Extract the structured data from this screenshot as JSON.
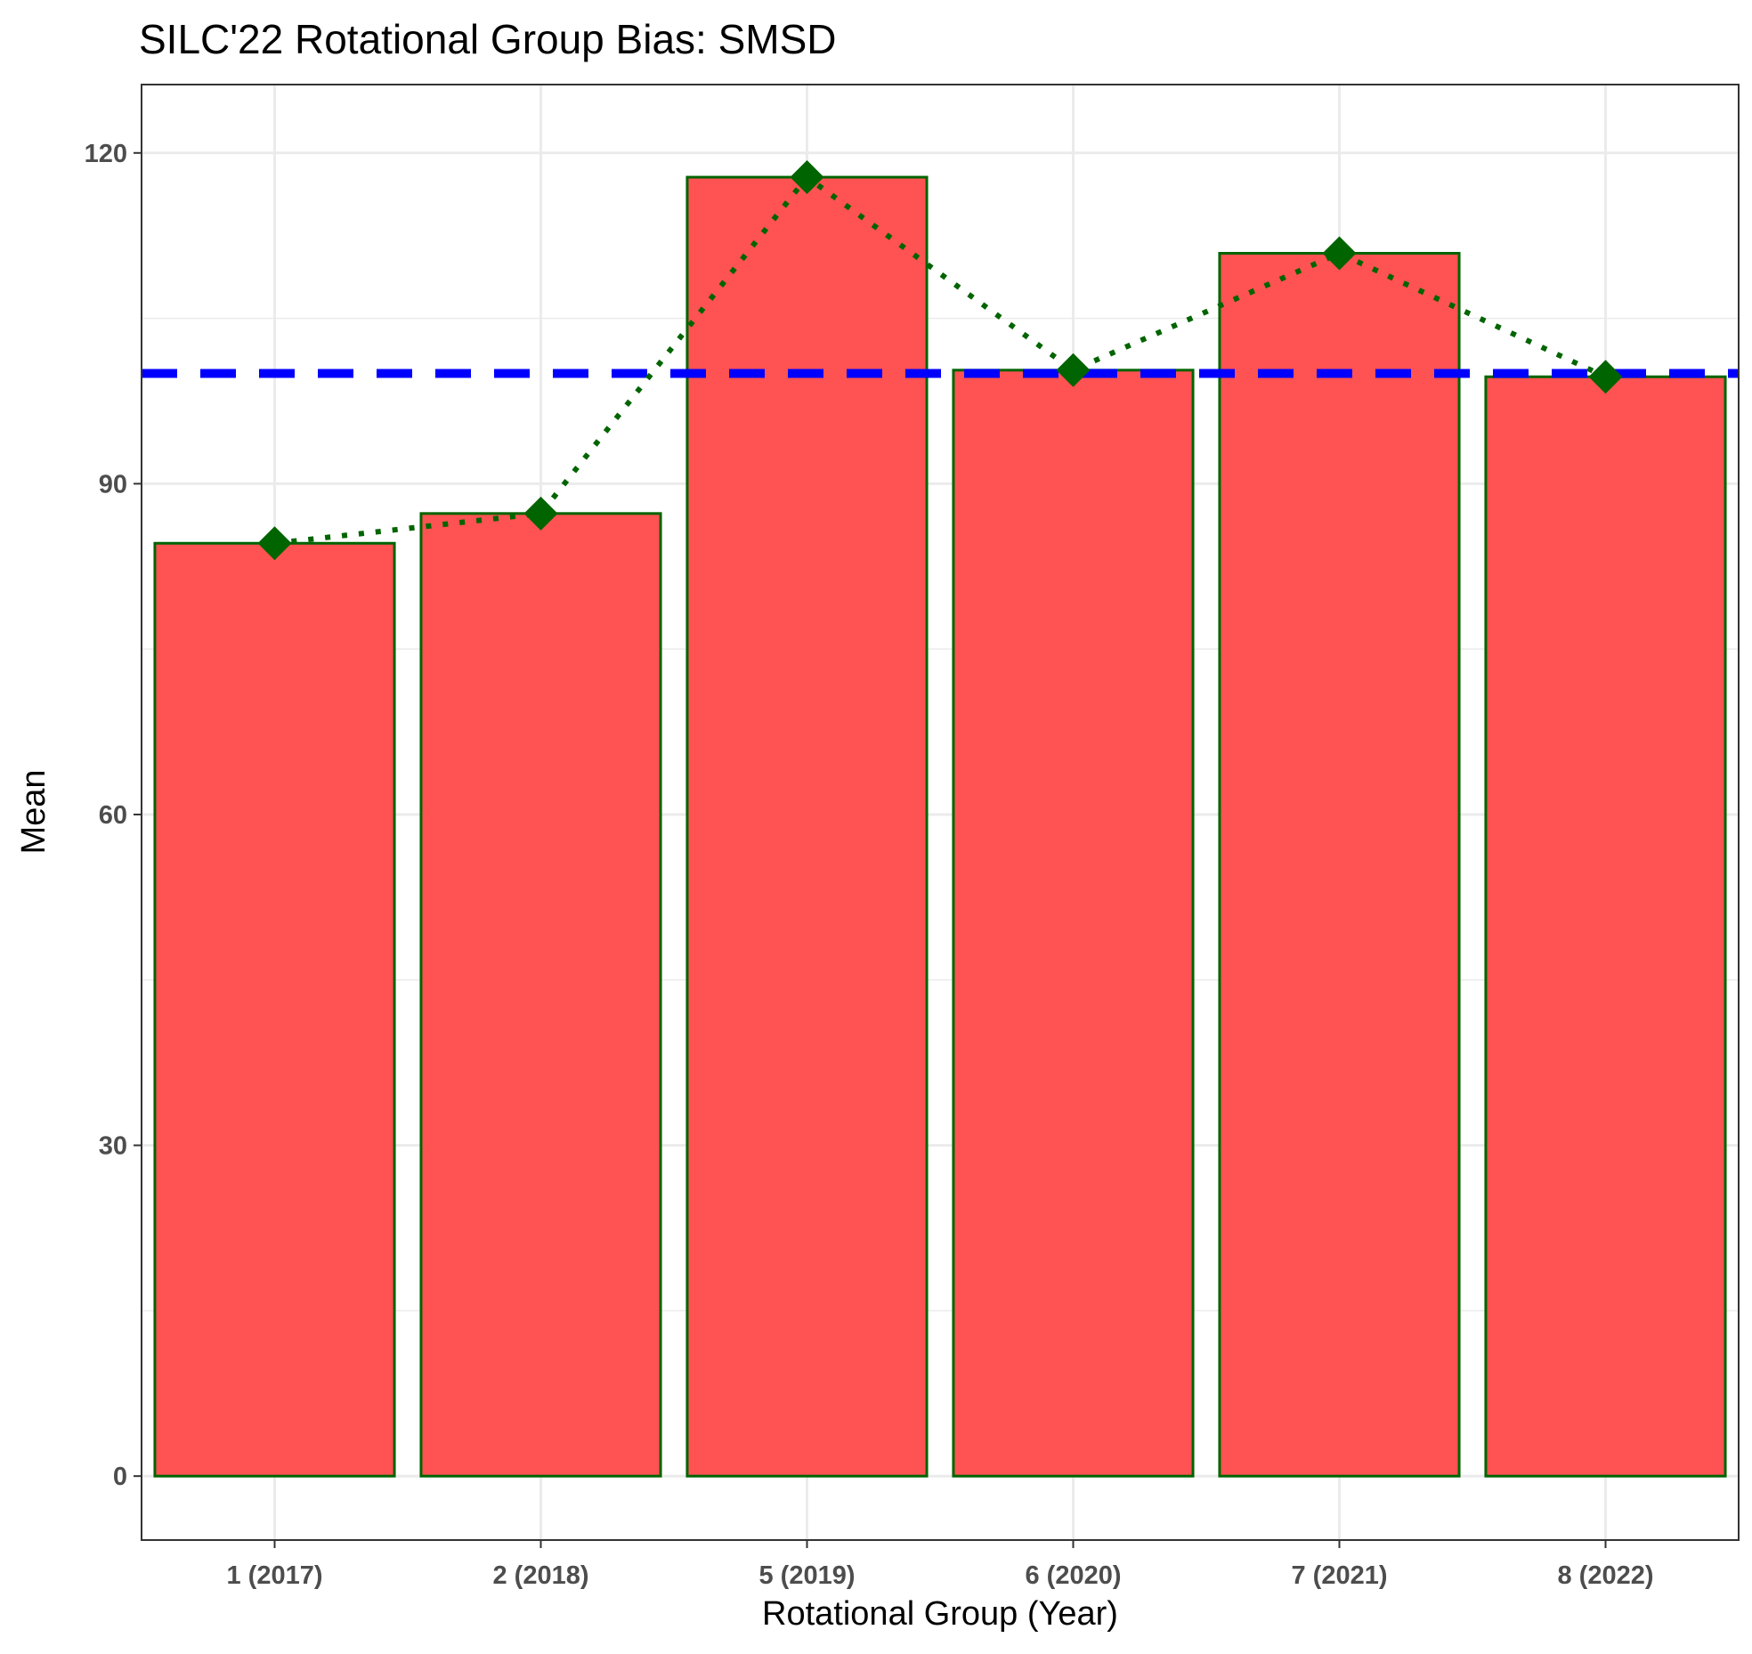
{
  "chart_data": {
    "type": "bar",
    "title": "SILC'22 Rotational Group Bias: SMSD",
    "xlabel": "Rotational Group (Year)",
    "ylabel": "Mean",
    "categories": [
      "1 (2017)",
      "2 (2018)",
      "5 (2019)",
      "6 (2020)",
      "7 (2021)",
      "8 (2022)"
    ],
    "values": [
      84.6,
      87.3,
      117.8,
      100.3,
      110.9,
      99.7
    ],
    "overlay_line": {
      "style": "dotted",
      "marker": "diamond",
      "values": [
        84.6,
        87.3,
        117.8,
        100.3,
        110.9,
        99.7
      ]
    },
    "reference_line": {
      "style": "dashed",
      "value": 100
    },
    "y_ticks": [
      0,
      30,
      60,
      90,
      120
    ],
    "ylim": [
      -5.8,
      126.2
    ],
    "grid": true,
    "colors": {
      "bar_fill": "#ff5252",
      "bar_stroke": "#006400",
      "line": "#006400",
      "marker": "#006400",
      "reference_line": "#0000ff",
      "grid": "#ebebeb",
      "panel_border": "#333333"
    }
  }
}
